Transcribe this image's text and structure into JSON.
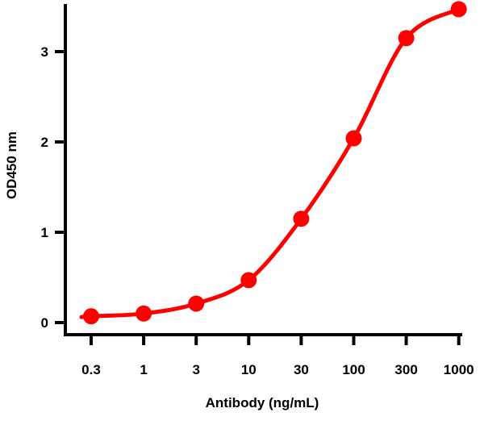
{
  "chart_data": {
    "type": "line",
    "title": "",
    "xlabel": "Antibody (ng/mL)",
    "ylabel": "OD450 nm",
    "x_scale": "log",
    "x": [
      0.3,
      1,
      3,
      10,
      30,
      100,
      300,
      1000
    ],
    "x_tick_labels": [
      "0.3",
      "1",
      "3",
      "10",
      "30",
      "100",
      "300",
      "1000"
    ],
    "y_ticks": [
      0,
      1,
      2,
      3
    ],
    "y_tick_labels": [
      "0",
      "1",
      "2",
      "3"
    ],
    "ylim": [
      -0.13,
      3.55
    ],
    "grid": false,
    "series": [
      {
        "values": [
          0.07,
          0.1,
          0.21,
          0.47,
          1.15,
          2.04,
          3.15,
          3.47
        ],
        "color": "#ff0000"
      }
    ]
  }
}
